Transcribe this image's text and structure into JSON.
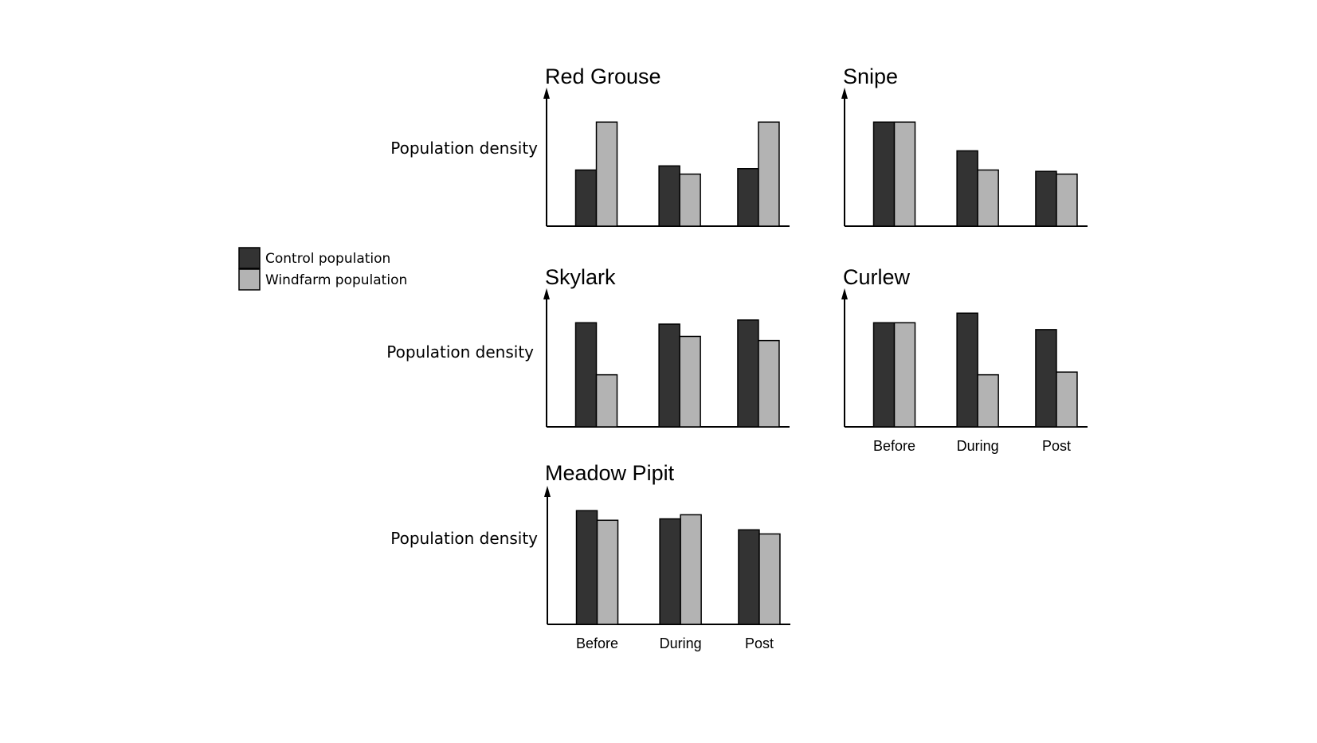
{
  "colors": {
    "control": "#333333",
    "windfarm": "#b3b3b3"
  },
  "legend": [
    {
      "label": "Control population",
      "color": "#333333"
    },
    {
      "label": "Windfarm population",
      "color": "#b3b3b3"
    }
  ],
  "chart_data": [
    {
      "type": "bar",
      "title": "Red Grouse",
      "ylabel": "Population density",
      "categories": [
        "Before",
        "During",
        "Post"
      ],
      "show_xticks": false,
      "ylim": [
        0,
        1
      ],
      "series": [
        {
          "name": "Control population",
          "values": [
            0.41,
            0.44,
            0.42
          ]
        },
        {
          "name": "Windfarm population",
          "values": [
            0.76,
            0.38,
            0.76
          ]
        }
      ]
    },
    {
      "type": "bar",
      "title": "Snipe",
      "ylabel": "",
      "categories": [
        "Before",
        "During",
        "Post"
      ],
      "show_xticks": false,
      "ylim": [
        0,
        1
      ],
      "series": [
        {
          "name": "Control population",
          "values": [
            0.76,
            0.55,
            0.4
          ]
        },
        {
          "name": "Windfarm population",
          "values": [
            0.76,
            0.41,
            0.38
          ]
        }
      ]
    },
    {
      "type": "bar",
      "title": "Skylark",
      "ylabel": "Population density",
      "categories": [
        "Before",
        "During",
        "Post"
      ],
      "show_xticks": false,
      "ylim": [
        0,
        1
      ],
      "series": [
        {
          "name": "Control population",
          "values": [
            0.76,
            0.75,
            0.78
          ]
        },
        {
          "name": "Windfarm population",
          "values": [
            0.38,
            0.66,
            0.63
          ]
        }
      ]
    },
    {
      "type": "bar",
      "title": "Curlew",
      "ylabel": "",
      "categories": [
        "Before",
        "During",
        "Post"
      ],
      "show_xticks": true,
      "ylim": [
        0,
        1
      ],
      "series": [
        {
          "name": "Control population",
          "values": [
            0.76,
            0.83,
            0.71
          ]
        },
        {
          "name": "Windfarm population",
          "values": [
            0.76,
            0.38,
            0.4
          ]
        }
      ]
    },
    {
      "type": "bar",
      "title": "Meadow Pipit",
      "ylabel": "Population density",
      "categories": [
        "Before",
        "During",
        "Post"
      ],
      "show_xticks": true,
      "ylim": [
        0,
        1
      ],
      "series": [
        {
          "name": "Control population",
          "values": [
            0.83,
            0.77,
            0.69
          ]
        },
        {
          "name": "Windfarm population",
          "values": [
            0.76,
            0.8,
            0.66
          ]
        }
      ]
    }
  ]
}
